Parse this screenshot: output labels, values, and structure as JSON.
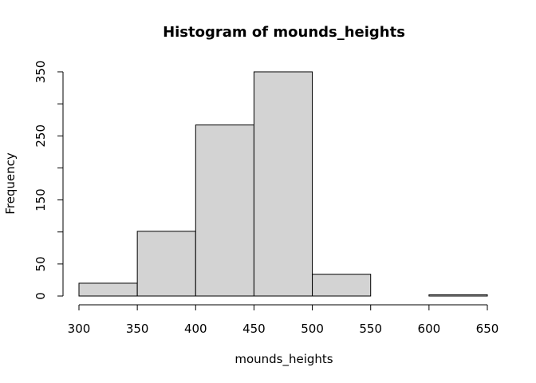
{
  "chart_data": {
    "type": "bar",
    "title": "Histogram of mounds_heights",
    "xlabel": "mounds_heights",
    "ylabel": "Frequency",
    "bin_edges": [
      300,
      350,
      400,
      450,
      500,
      550,
      600,
      650
    ],
    "values": [
      20,
      101,
      267,
      350,
      34,
      0,
      2
    ],
    "xlim": [
      300,
      650
    ],
    "ylim": [
      0,
      350
    ],
    "x_ticks": [
      300,
      350,
      400,
      450,
      500,
      550,
      600,
      650
    ],
    "y_ticks": [
      0,
      50,
      100,
      150,
      200,
      250,
      300,
      350
    ],
    "y_tick_labels": [
      "0",
      "50",
      "",
      "150",
      "",
      "250",
      "",
      "350"
    ],
    "bar_color": "#d3d3d3",
    "grid": false
  }
}
